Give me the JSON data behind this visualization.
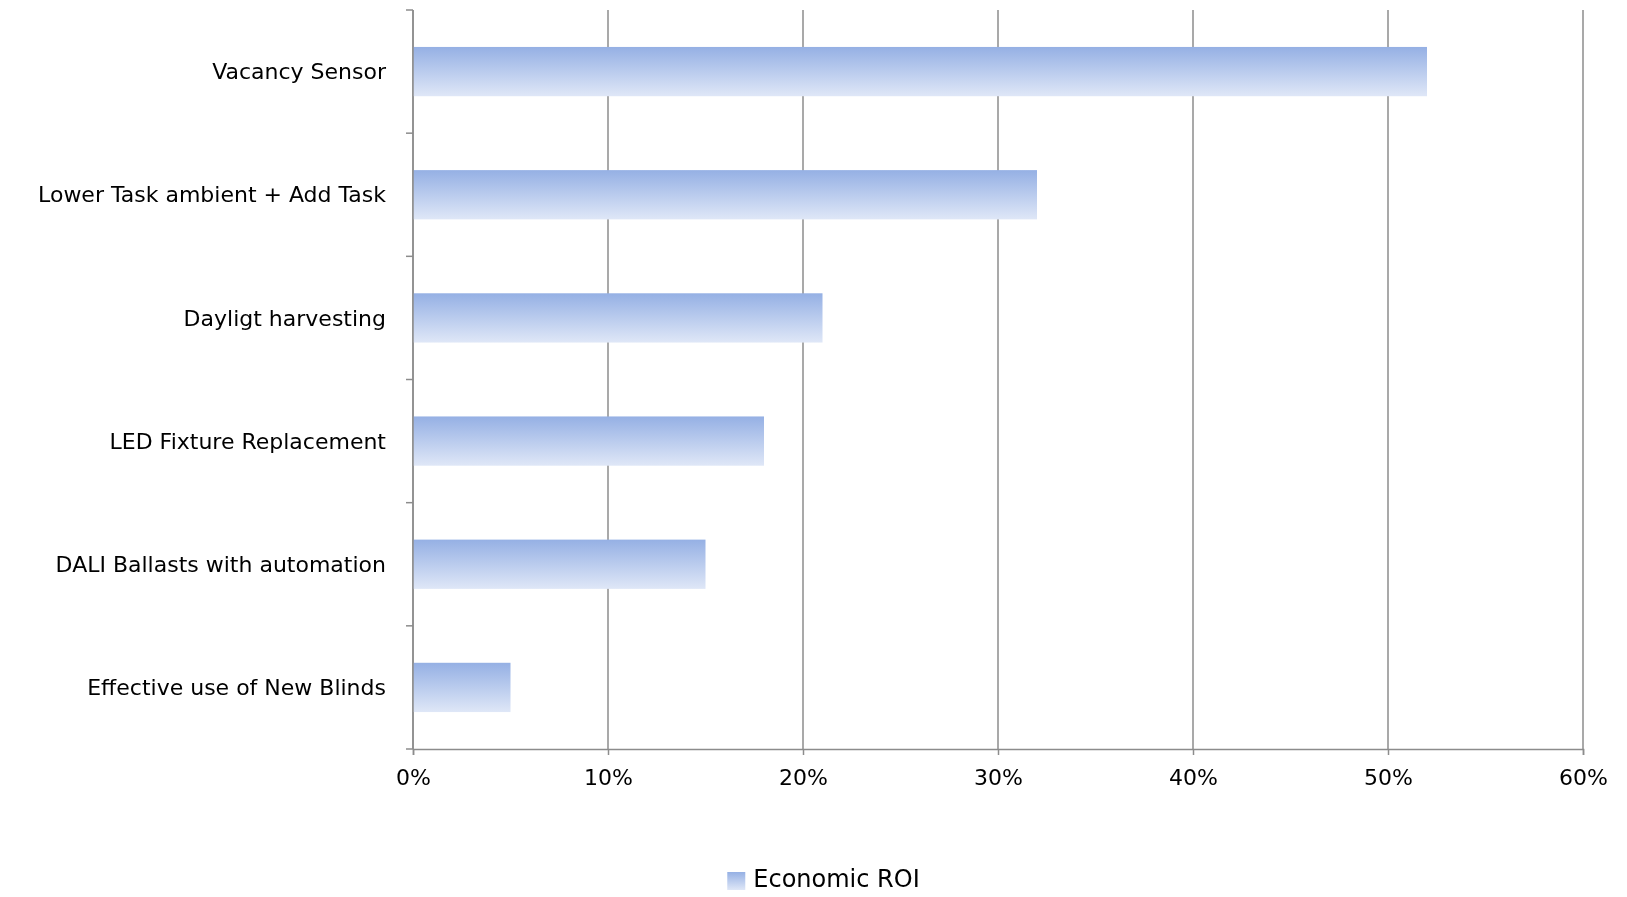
{
  "chart_data": {
    "type": "bar",
    "orientation": "horizontal",
    "categories": [
      "Vacancy Sensor",
      "Lower Task ambient + Add Task",
      "Dayligt harvesting",
      "LED Fixture Replacement",
      "DALI Ballasts with automation",
      "Effective use of New Blinds"
    ],
    "series": [
      {
        "name": "Economic ROI",
        "color": "#95b0e4",
        "values": [
          52,
          32,
          21,
          18,
          15,
          5
        ]
      }
    ],
    "xlim": [
      0,
      60
    ],
    "xticks": [
      {
        "value": 0,
        "label": "0%"
      },
      {
        "value": 10,
        "label": "10%"
      },
      {
        "value": 20,
        "label": "20%"
      },
      {
        "value": 30,
        "label": "30%"
      },
      {
        "value": 40,
        "label": "40%"
      },
      {
        "value": 50,
        "label": "50%"
      },
      {
        "value": 60,
        "label": "60%"
      }
    ],
    "grid": "x",
    "legend": "bottom"
  }
}
